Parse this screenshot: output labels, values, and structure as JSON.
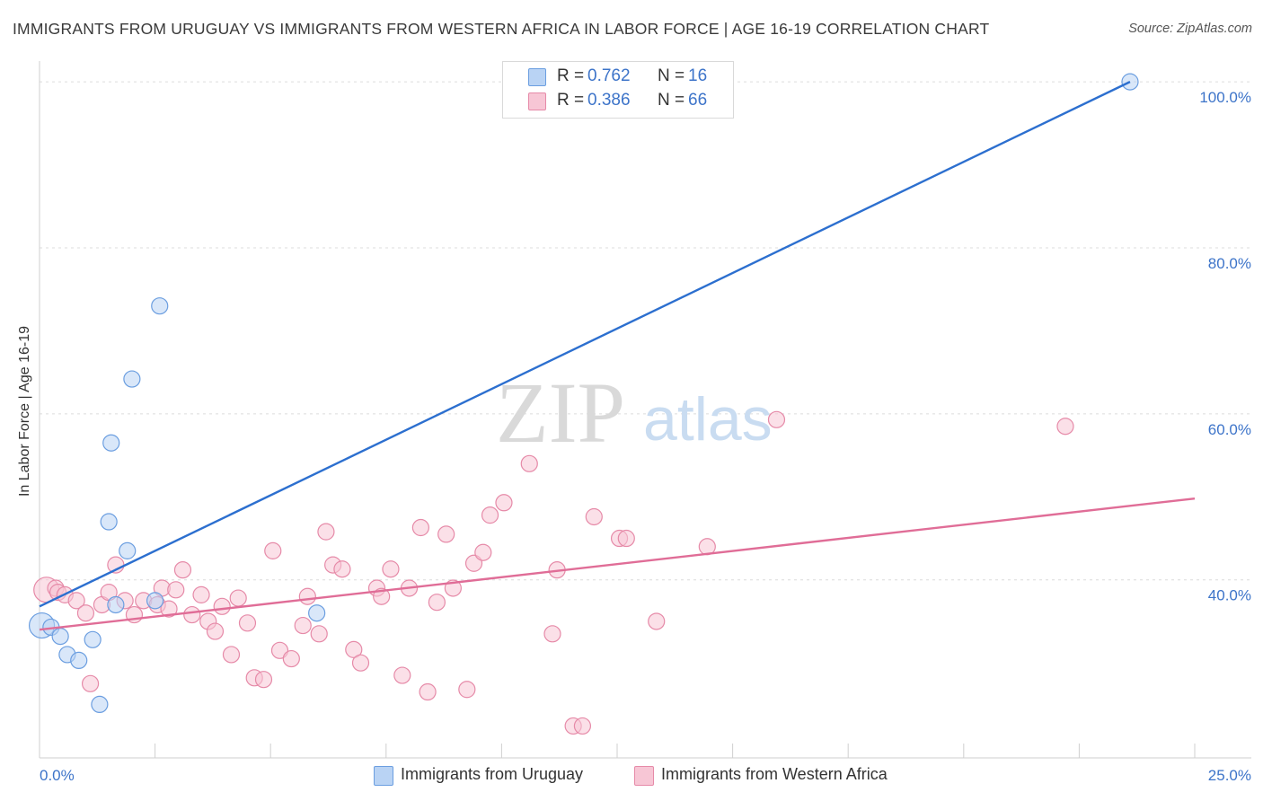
{
  "title": "IMMIGRANTS FROM URUGUAY VS IMMIGRANTS FROM WESTERN AFRICA IN LABOR FORCE | AGE 16-19 CORRELATION CHART",
  "source": "Source: ZipAtlas.com",
  "watermark": {
    "zip": "ZIP",
    "atlas": "atlas"
  },
  "legend": {
    "r_label": "R =",
    "n_label": "N =",
    "uruguay": {
      "r": "0.762",
      "n": "16"
    },
    "western_africa": {
      "r": "0.386",
      "n": "66"
    }
  },
  "colors": {
    "uruguay_fill": "#b9d3f4",
    "uruguay_stroke": "#6b9ee0",
    "uruguay_line": "#2c6fcf",
    "wafrica_fill": "#f7c6d5",
    "wafrica_stroke": "#e68aa8",
    "wafrica_line": "#e06d97",
    "grid": "#dcdcdc",
    "axis_text": "#3d74c9"
  },
  "chart_data": {
    "type": "scatter",
    "title": "IMMIGRANTS FROM URUGUAY VS IMMIGRANTS FROM WESTERN AFRICA IN LABOR FORCE | AGE 16-19 CORRELATION CHART",
    "xlabel": "",
    "ylabel": "In Labor Force | Age 16-19",
    "xlim": [
      0,
      25
    ],
    "ylim": [
      20.5,
      102.5
    ],
    "x_tick_labels": [
      "0.0%",
      "25.0%"
    ],
    "y_ticks": [
      40,
      60,
      80,
      100
    ],
    "y_tick_labels": [
      "40.0%",
      "60.0%",
      "80.0%",
      "100.0%"
    ],
    "legend_position": "top-center",
    "series": [
      {
        "name": "Immigrants from Uruguay",
        "points": [
          [
            0.05,
            34.5
          ],
          [
            0.25,
            34.3
          ],
          [
            0.45,
            33.2
          ],
          [
            0.6,
            31.0
          ],
          [
            0.85,
            30.3
          ],
          [
            1.15,
            32.8
          ],
          [
            1.3,
            25.0
          ],
          [
            1.5,
            47.0
          ],
          [
            1.55,
            56.5
          ],
          [
            1.65,
            37.0
          ],
          [
            1.9,
            43.5
          ],
          [
            2.0,
            64.2
          ],
          [
            2.5,
            37.5
          ],
          [
            2.6,
            73.0
          ],
          [
            6.0,
            36.0
          ],
          [
            23.6,
            100.0
          ]
        ],
        "trend": [
          [
            0.0,
            36.8
          ],
          [
            23.6,
            100.0
          ]
        ]
      },
      {
        "name": "Immigrants from Western Africa",
        "points": [
          [
            0.15,
            38.8
          ],
          [
            0.35,
            39.0
          ],
          [
            0.4,
            38.5
          ],
          [
            0.55,
            38.2
          ],
          [
            0.8,
            37.5
          ],
          [
            1.0,
            36.0
          ],
          [
            1.1,
            27.5
          ],
          [
            1.35,
            37.0
          ],
          [
            1.5,
            38.5
          ],
          [
            1.65,
            41.8
          ],
          [
            1.85,
            37.5
          ],
          [
            2.05,
            35.8
          ],
          [
            2.25,
            37.5
          ],
          [
            2.55,
            37.0
          ],
          [
            2.65,
            39.0
          ],
          [
            2.8,
            36.5
          ],
          [
            2.95,
            38.8
          ],
          [
            3.1,
            41.2
          ],
          [
            3.3,
            35.8
          ],
          [
            3.5,
            38.2
          ],
          [
            3.65,
            35.0
          ],
          [
            3.8,
            33.8
          ],
          [
            3.95,
            36.8
          ],
          [
            4.15,
            31.0
          ],
          [
            4.3,
            37.8
          ],
          [
            4.5,
            34.8
          ],
          [
            4.65,
            28.2
          ],
          [
            4.85,
            28.0
          ],
          [
            5.05,
            43.5
          ],
          [
            5.2,
            31.5
          ],
          [
            5.45,
            30.5
          ],
          [
            5.7,
            34.5
          ],
          [
            5.8,
            38.0
          ],
          [
            6.05,
            33.5
          ],
          [
            6.2,
            45.8
          ],
          [
            6.35,
            41.8
          ],
          [
            6.55,
            41.3
          ],
          [
            6.8,
            31.6
          ],
          [
            6.95,
            30.0
          ],
          [
            7.3,
            39.0
          ],
          [
            7.4,
            38.0
          ],
          [
            7.6,
            41.3
          ],
          [
            7.85,
            28.5
          ],
          [
            8.0,
            39.0
          ],
          [
            8.25,
            46.3
          ],
          [
            8.4,
            26.5
          ],
          [
            8.6,
            37.3
          ],
          [
            8.8,
            45.5
          ],
          [
            8.95,
            39.0
          ],
          [
            9.25,
            26.8
          ],
          [
            9.4,
            42.0
          ],
          [
            9.6,
            43.3
          ],
          [
            9.75,
            47.8
          ],
          [
            10.05,
            49.3
          ],
          [
            10.6,
            54.0
          ],
          [
            11.1,
            33.5
          ],
          [
            11.2,
            41.2
          ],
          [
            11.55,
            22.4
          ],
          [
            11.75,
            22.4
          ],
          [
            12.0,
            47.6
          ],
          [
            12.55,
            45.0
          ],
          [
            12.7,
            45.0
          ],
          [
            13.35,
            35.0
          ],
          [
            14.45,
            44.0
          ],
          [
            15.95,
            59.3
          ],
          [
            22.2,
            58.5
          ]
        ],
        "trend": [
          [
            0.0,
            34.0
          ],
          [
            25.0,
            49.8
          ]
        ]
      }
    ]
  }
}
